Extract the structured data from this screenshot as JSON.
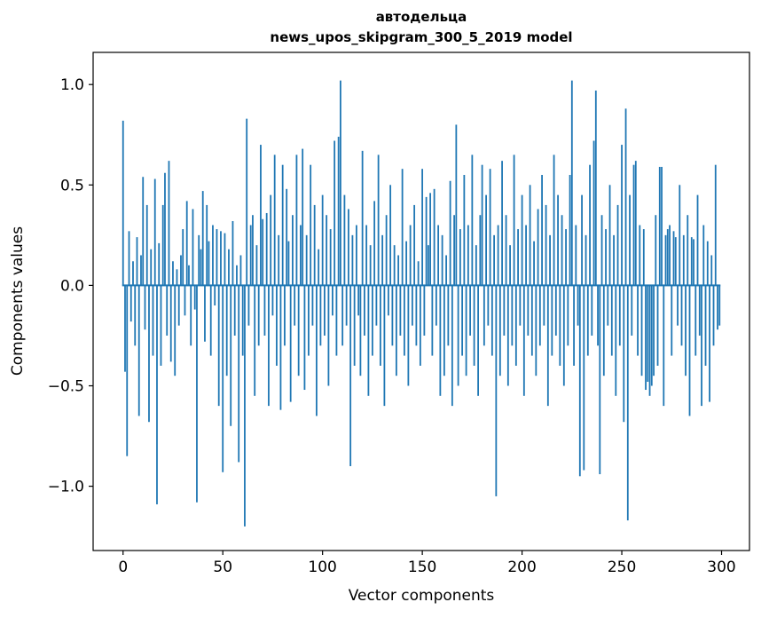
{
  "figure": {
    "title_line1": "автодельца",
    "title_line2": "news_upos_skipgram_300_5_2019 model",
    "xlabel": "Vector components",
    "ylabel": "Components values"
  },
  "chart_data": {
    "type": "bar",
    "title": "автодельца\nnews_upos_skipgram_300_5_2019 model",
    "xlabel": "Vector components",
    "ylabel": "Components values",
    "x_ticks": [
      0,
      50,
      100,
      150,
      200,
      250,
      300
    ],
    "y_ticks": [
      -1.0,
      -0.5,
      0.0,
      0.5,
      1.0
    ],
    "xlim": [
      -15,
      314
    ],
    "ylim": [
      -1.32,
      1.16
    ],
    "grid": false,
    "legend": false,
    "bar_color": "#1f77b4",
    "n_components": 300,
    "values": [
      0.82,
      -0.43,
      -0.85,
      0.27,
      -0.18,
      0.12,
      -0.3,
      0.24,
      -0.65,
      0.15,
      0.54,
      -0.22,
      0.4,
      -0.68,
      0.18,
      -0.35,
      0.53,
      -1.09,
      0.21,
      -0.4,
      0.4,
      0.56,
      -0.25,
      0.62,
      -0.38,
      0.12,
      -0.45,
      0.08,
      -0.2,
      0.15,
      0.28,
      -0.15,
      0.42,
      0.1,
      -0.3,
      0.38,
      -0.12,
      -1.08,
      0.25,
      0.18,
      0.47,
      -0.28,
      0.4,
      0.22,
      -0.35,
      0.3,
      -0.1,
      0.28,
      -0.6,
      0.27,
      -0.93,
      0.26,
      -0.45,
      0.18,
      -0.7,
      0.32,
      -0.25,
      0.1,
      -0.88,
      0.15,
      -0.35,
      -1.2,
      0.83,
      -0.2,
      0.3,
      0.35,
      -0.55,
      0.2,
      -0.3,
      0.7,
      0.33,
      -0.25,
      0.36,
      -0.6,
      0.45,
      -0.15,
      0.65,
      -0.4,
      0.25,
      -0.62,
      0.6,
      -0.3,
      0.48,
      0.22,
      -0.58,
      0.35,
      -0.2,
      0.65,
      -0.45,
      0.3,
      0.68,
      -0.52,
      0.25,
      -0.35,
      0.6,
      -0.2,
      0.4,
      -0.65,
      0.18,
      -0.3,
      0.45,
      -0.25,
      0.35,
      -0.5,
      0.28,
      -0.15,
      0.72,
      -0.35,
      0.74,
      1.02,
      -0.3,
      0.45,
      -0.2,
      0.38,
      -0.9,
      0.25,
      -0.4,
      0.3,
      -0.15,
      -0.45,
      0.67,
      -0.25,
      0.3,
      -0.55,
      0.2,
      -0.35,
      0.42,
      -0.2,
      0.65,
      -0.4,
      0.25,
      -0.6,
      0.35,
      -0.15,
      0.5,
      -0.3,
      0.2,
      -0.45,
      0.15,
      -0.25,
      0.58,
      -0.35,
      0.22,
      -0.5,
      0.3,
      -0.2,
      0.4,
      -0.3,
      0.12,
      -0.4,
      0.58,
      -0.25,
      0.44,
      0.2,
      0.46,
      -0.35,
      0.48,
      -0.2,
      0.3,
      -0.55,
      0.25,
      -0.45,
      0.15,
      -0.3,
      0.52,
      -0.6,
      0.35,
      0.8,
      -0.5,
      0.28,
      -0.35,
      0.55,
      -0.45,
      0.3,
      -0.25,
      0.65,
      -0.4,
      0.2,
      -0.55,
      0.35,
      0.6,
      -0.3,
      0.45,
      -0.2,
      0.58,
      -0.35,
      0.25,
      -1.05,
      0.3,
      -0.45,
      0.62,
      -0.25,
      0.35,
      -0.5,
      0.2,
      -0.3,
      0.65,
      -0.4,
      0.28,
      -0.2,
      0.45,
      -0.55,
      0.3,
      -0.25,
      0.5,
      -0.35,
      0.22,
      -0.45,
      0.38,
      -0.3,
      0.55,
      -0.2,
      0.4,
      -0.6,
      0.25,
      -0.35,
      0.65,
      -0.25,
      0.45,
      -0.4,
      0.35,
      -0.5,
      0.28,
      -0.3,
      0.55,
      1.02,
      -0.4,
      0.3,
      -0.2,
      -0.95,
      0.45,
      -0.92,
      0.25,
      -0.35,
      0.6,
      -0.25,
      0.72,
      0.97,
      -0.3,
      -0.94,
      0.35,
      -0.45,
      0.28,
      -0.2,
      0.5,
      -0.35,
      0.25,
      -0.55,
      0.4,
      -0.3,
      0.7,
      -0.68,
      0.88,
      -1.17,
      0.45,
      -0.25,
      0.6,
      0.62,
      -0.35,
      0.3,
      -0.45,
      0.28,
      -0.52,
      -0.48,
      -0.55,
      -0.5,
      -0.45,
      0.35,
      -0.4,
      0.59,
      0.59,
      -0.6,
      0.25,
      0.28,
      0.3,
      -0.35,
      0.27,
      0.24,
      -0.2,
      0.5,
      -0.3,
      0.25,
      -0.45,
      0.35,
      -0.65,
      0.24,
      0.23,
      -0.35,
      0.45,
      -0.25,
      -0.6,
      0.3,
      -0.4,
      0.22,
      -0.58,
      0.15,
      -0.3,
      0.6,
      -0.22,
      -0.2
    ]
  }
}
